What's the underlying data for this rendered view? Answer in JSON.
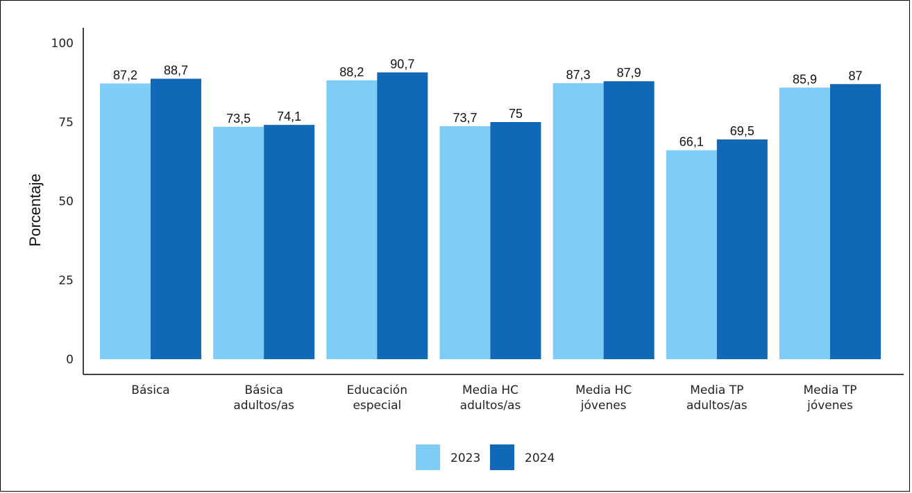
{
  "chart_data": {
    "type": "bar",
    "title": "",
    "xlabel": "",
    "ylabel": "Porcentaje",
    "ylim": [
      0,
      100
    ],
    "yticks": [
      0,
      25,
      50,
      75,
      100
    ],
    "grid": false,
    "legend_position": "bottom",
    "categories": [
      [
        "Básica"
      ],
      [
        "Básica",
        "adultos/as"
      ],
      [
        "Educación",
        "especial"
      ],
      [
        "Media HC",
        "adultos/as"
      ],
      [
        "Media HC",
        "jóvenes"
      ],
      [
        "Media TP",
        "adultos/as"
      ],
      [
        "Media TP",
        "jóvenes"
      ]
    ],
    "series": [
      {
        "name": "2023",
        "color": "#7dcdf6",
        "values": [
          87.2,
          73.5,
          88.2,
          73.7,
          87.3,
          66.1,
          85.9
        ],
        "labels": [
          "87,2",
          "73,5",
          "88,2",
          "73,7",
          "87,3",
          "66,1",
          "85,9"
        ]
      },
      {
        "name": "2024",
        "color": "#1168b6",
        "values": [
          88.7,
          74.1,
          90.7,
          75,
          87.9,
          69.5,
          87
        ],
        "labels": [
          "88,7",
          "74,1",
          "90,7",
          "75",
          "87,9",
          "69,5",
          "87"
        ]
      }
    ]
  }
}
